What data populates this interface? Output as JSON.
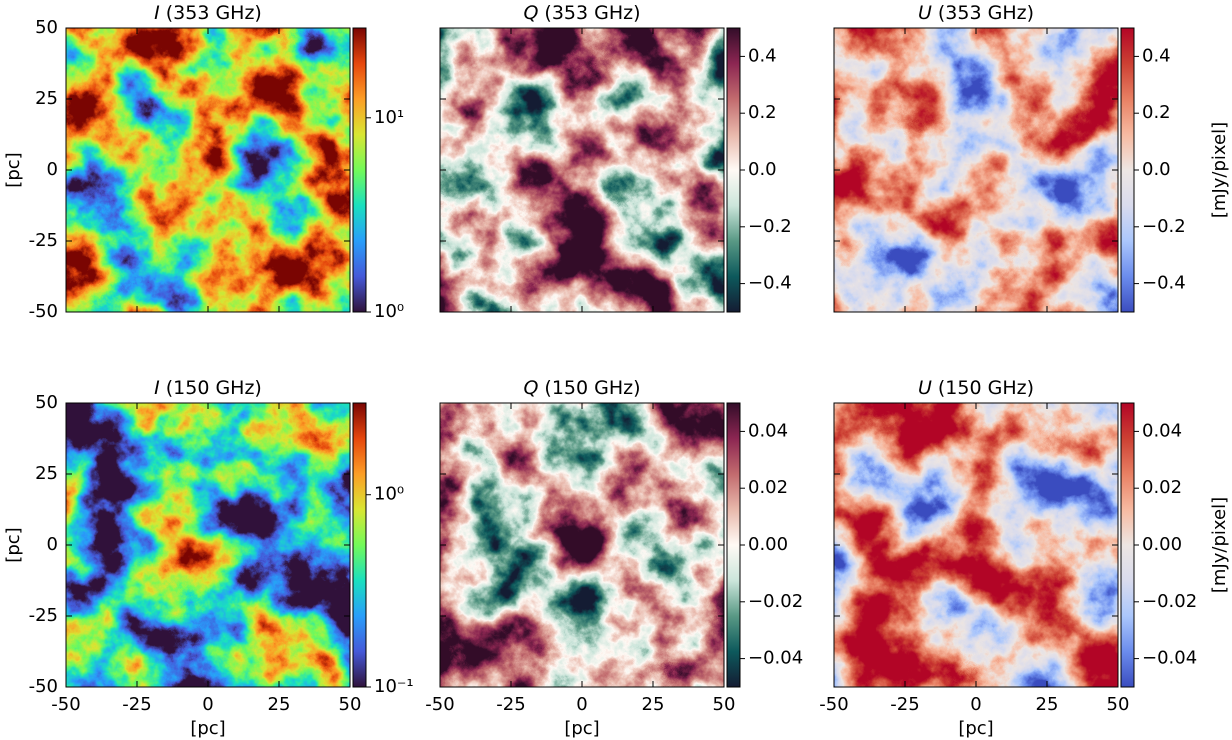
{
  "chart_data": [
    {
      "type": "heatmap",
      "stokes": "I",
      "band": "(353 GHz)",
      "xlim": [
        -50,
        50
      ],
      "ylim": [
        -50,
        50
      ],
      "xticks": [
        -50,
        -25,
        0,
        25,
        50
      ],
      "yticks": [
        -50,
        -25,
        0,
        25,
        50
      ],
      "show_xticklabels": false,
      "ylabel": "[pc]",
      "colormap": "turbo",
      "clog": true,
      "clim": [
        1,
        29
      ],
      "cticks": [
        {
          "value": 1,
          "label": "10⁰"
        },
        {
          "value": 10,
          "label": "10¹"
        }
      ]
    },
    {
      "type": "heatmap",
      "stokes": "Q",
      "band": "(353 GHz)",
      "xlim": [
        -50,
        50
      ],
      "ylim": [
        -50,
        50
      ],
      "xticks": [
        -50,
        -25,
        0,
        25,
        50
      ],
      "yticks": [
        -50,
        -25,
        0,
        25,
        50
      ],
      "show_xticklabels": false,
      "show_yticklabels": false,
      "colormap": "curl",
      "clog": false,
      "clim": [
        -0.5,
        0.5
      ],
      "cticks": [
        0.4,
        0.2,
        {
          "value": 0,
          "label": "0.0"
        },
        {
          "value": -0.2,
          "label": "−0.2"
        },
        {
          "value": -0.4,
          "label": "−0.4"
        }
      ]
    },
    {
      "type": "heatmap",
      "stokes": "U",
      "band": "(353 GHz)",
      "xlim": [
        -50,
        50
      ],
      "ylim": [
        -50,
        50
      ],
      "xticks": [
        -50,
        -25,
        0,
        25,
        50
      ],
      "yticks": [
        -50,
        -25,
        0,
        25,
        50
      ],
      "show_xticklabels": false,
      "show_yticklabels": false,
      "colormap": "coolwarm",
      "clog": false,
      "clim": [
        -0.5,
        0.5
      ],
      "cticks": [
        0.4,
        0.2,
        {
          "value": 0,
          "label": "0.0"
        },
        {
          "value": -0.2,
          "label": "−0.2"
        },
        {
          "value": -0.4,
          "label": "−0.4"
        }
      ],
      "clabel": "[mJy/pixel]"
    },
    {
      "type": "heatmap",
      "stokes": "I",
      "band": "(150 GHz)",
      "xlim": [
        -50,
        50
      ],
      "ylim": [
        -50,
        50
      ],
      "xticks": [
        -50,
        -25,
        0,
        25,
        50
      ],
      "yticks": [
        -50,
        -25,
        0,
        25,
        50
      ],
      "xlabel": "[pc]",
      "ylabel": "[pc]",
      "colormap": "turbo",
      "clog": true,
      "clim": [
        0.1,
        3
      ],
      "cticks": [
        {
          "value": 0.1,
          "label": "10⁻¹"
        },
        {
          "value": 1,
          "label": "10⁰"
        }
      ]
    },
    {
      "type": "heatmap",
      "stokes": "Q",
      "band": "(150 GHz)",
      "xlim": [
        -50,
        50
      ],
      "ylim": [
        -50,
        50
      ],
      "xticks": [
        -50,
        -25,
        0,
        25,
        50
      ],
      "yticks": [
        -50,
        -25,
        0,
        25,
        50
      ],
      "show_yticklabels": false,
      "xlabel": "[pc]",
      "colormap": "curl",
      "clog": false,
      "clim": [
        -0.05,
        0.05
      ],
      "cticks": [
        0.04,
        0.02,
        {
          "value": 0,
          "label": "0.00"
        },
        {
          "value": -0.02,
          "label": "−0.02"
        },
        {
          "value": -0.04,
          "label": "−0.04"
        }
      ]
    },
    {
      "type": "heatmap",
      "stokes": "U",
      "band": "(150 GHz)",
      "xlim": [
        -50,
        50
      ],
      "ylim": [
        -50,
        50
      ],
      "xticks": [
        -50,
        -25,
        0,
        25,
        50
      ],
      "yticks": [
        -50,
        -25,
        0,
        25,
        50
      ],
      "show_yticklabels": false,
      "xlabel": "[pc]",
      "colormap": "coolwarm",
      "clog": false,
      "clim": [
        -0.05,
        0.05
      ],
      "cticks": [
        0.04,
        0.02,
        {
          "value": 0,
          "label": "0.00"
        },
        {
          "value": -0.02,
          "label": "−0.02"
        },
        {
          "value": -0.04,
          "label": "−0.04"
        }
      ],
      "clabel": "[mJy/pixel]"
    }
  ]
}
